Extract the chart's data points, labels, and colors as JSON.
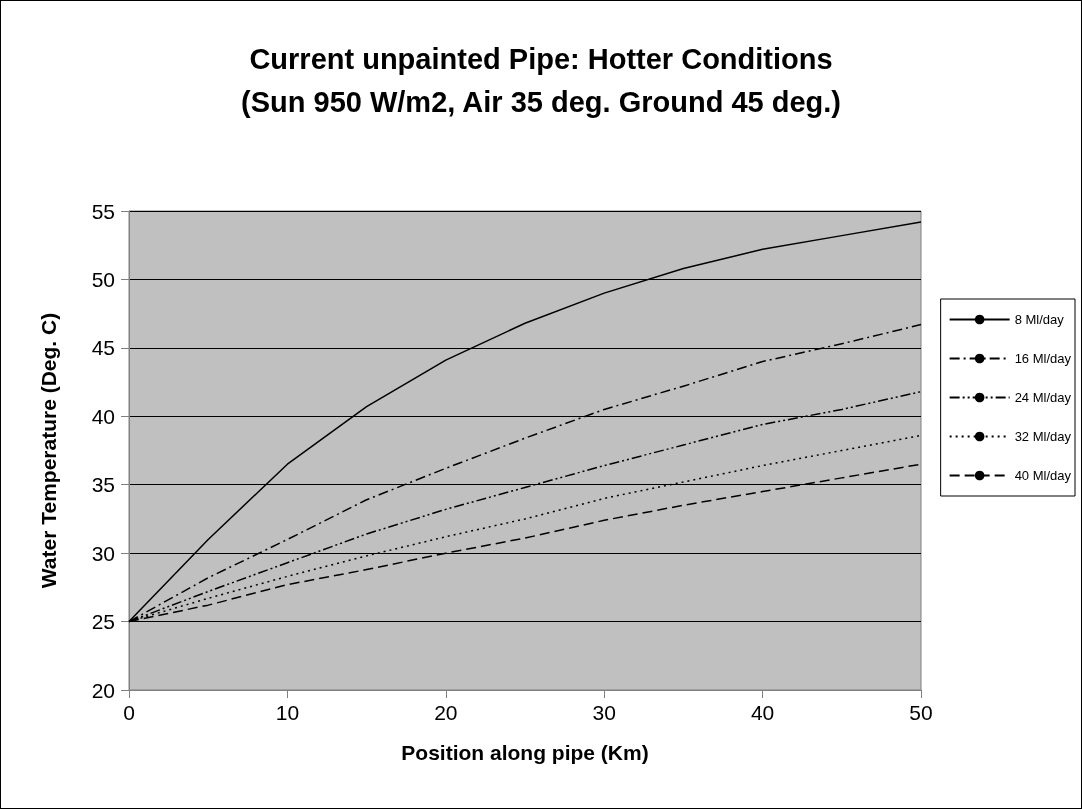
{
  "chart_data": {
    "type": "line",
    "title": "Current unpainted Pipe: Hotter Conditions",
    "subtitle": "(Sun 950 W/m2, Air 35 deg. Ground 45 deg.)",
    "xlabel": "Position along pipe (Km)",
    "ylabel": "Water Temperature (Deg. C)",
    "x": [
      0,
      5,
      10,
      15,
      20,
      25,
      30,
      35,
      40,
      45,
      50
    ],
    "series": [
      {
        "name": "8 Ml/day",
        "color": "#000000",
        "line_style": "solid",
        "values": [
          25,
          31,
          36.5,
          40.7,
          44.1,
          46.8,
          49,
          50.8,
          52.2,
          53.2,
          54.2
        ]
      },
      {
        "name": "16 Ml/day",
        "color": "#000000",
        "line_style": "dashdot",
        "values": [
          25,
          28.2,
          31,
          33.9,
          36.2,
          38.4,
          40.5,
          42.2,
          44,
          45.3,
          46.7
        ]
      },
      {
        "name": "24 Ml/day",
        "color": "#000000",
        "line_style": "dashdotdot",
        "values": [
          25,
          27.2,
          29.3,
          31.4,
          33.2,
          34.8,
          36.4,
          37.9,
          39.4,
          40.5,
          41.8
        ]
      },
      {
        "name": "32 Ml/day",
        "color": "#000000",
        "line_style": "dotted",
        "values": [
          25,
          26.7,
          28.3,
          29.8,
          31.2,
          32.5,
          34,
          35.2,
          36.4,
          37.5,
          38.6
        ]
      },
      {
        "name": "40 Ml/day",
        "color": "#000000",
        "line_style": "dashed",
        "values": [
          25,
          26.2,
          27.7,
          28.8,
          30,
          31.1,
          32.4,
          33.5,
          34.5,
          35.5,
          36.5
        ]
      }
    ],
    "xlim": [
      0,
      50
    ],
    "xticks": [
      0,
      10,
      20,
      30,
      40,
      50
    ],
    "ylim": [
      20,
      55
    ],
    "yticks": [
      20,
      25,
      30,
      35,
      40,
      45,
      50,
      55
    ],
    "grid": "y",
    "legend": "right",
    "marker": "none"
  }
}
